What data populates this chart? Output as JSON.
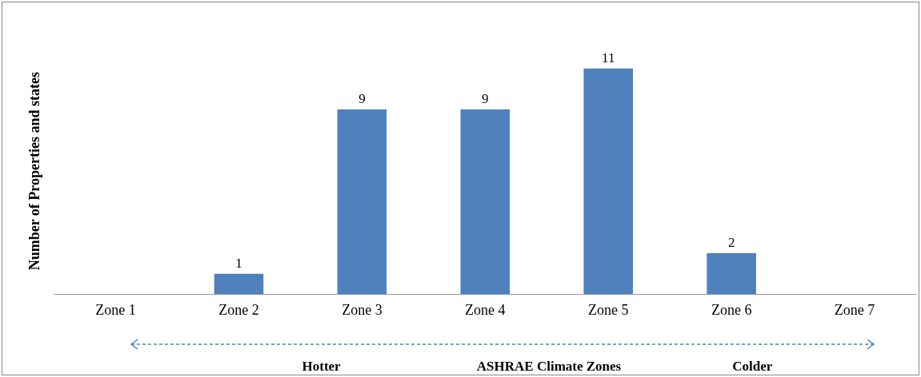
{
  "chart_data": {
    "type": "bar",
    "xlabel": "ASHRAE Climate Zones",
    "ylabel": "Number of Properties and states",
    "categories": [
      "Zone 1",
      "Zone 2",
      "Zone 3",
      "Zone 4",
      "Zone 5",
      "Zone 6",
      "Zone 7"
    ],
    "values": [
      null,
      1,
      9,
      9,
      11,
      2,
      null
    ],
    "color": "#4f81bd",
    "data_labels": true,
    "grid": false,
    "legend": false,
    "tick_labels": "x",
    "annotations": [
      "Hotter",
      "Colder"
    ]
  }
}
